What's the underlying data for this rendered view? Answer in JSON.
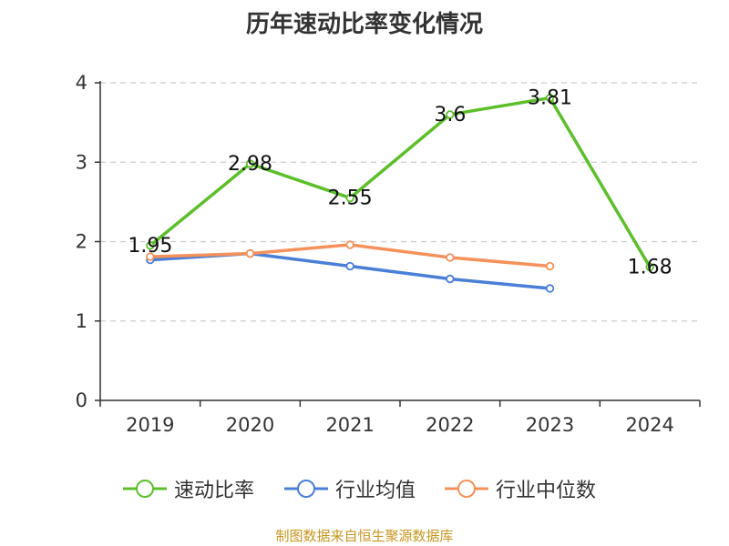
{
  "chart_data": {
    "type": "line",
    "title": "历年速动比率变化情况",
    "categories": [
      "2019",
      "2020",
      "2021",
      "2022",
      "2023",
      "2024"
    ],
    "ylim": [
      0,
      4
    ],
    "yticks": [
      "0",
      "1",
      "2",
      "3",
      "4"
    ],
    "grid": "horizontal-dashed",
    "legend_position": "bottom",
    "series": [
      {
        "name": "速动比率",
        "color": "#5cbf2a",
        "values": [
          1.95,
          2.98,
          2.55,
          3.6,
          3.81,
          1.68
        ],
        "labels": [
          "1.95",
          "2.98",
          "2.55",
          "3.6",
          "3.81",
          "1.68"
        ]
      },
      {
        "name": "行业均值",
        "color": "#4a7fd8",
        "values": [
          1.77,
          1.85,
          1.69,
          1.53,
          1.41,
          null
        ]
      },
      {
        "name": "行业中位数",
        "color": "#f5915a",
        "values": [
          1.81,
          1.85,
          1.96,
          1.8,
          1.69,
          null
        ]
      }
    ]
  },
  "source": "制图数据来自恒生聚源数据库"
}
